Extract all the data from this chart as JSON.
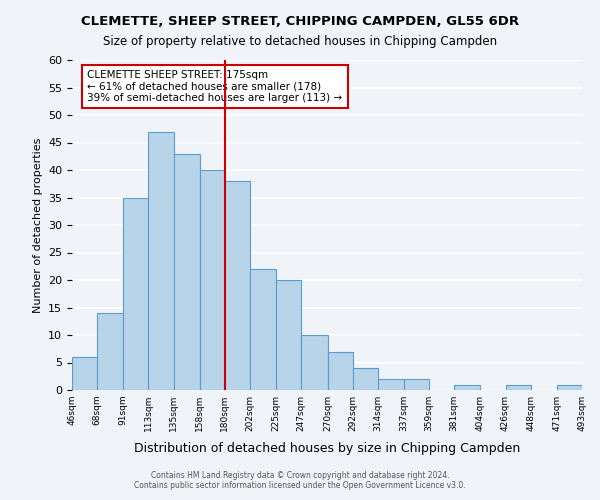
{
  "title": "CLEMETTE, SHEEP STREET, CHIPPING CAMPDEN, GL55 6DR",
  "subtitle": "Size of property relative to detached houses in Chipping Campden",
  "xlabel": "Distribution of detached houses by size in Chipping Campden",
  "ylabel": "Number of detached properties",
  "footer1": "Contains HM Land Registry data © Crown copyright and database right 2024.",
  "footer2": "Contains public sector information licensed under the Open Government Licence v3.0.",
  "bins": [
    46,
    68,
    91,
    113,
    135,
    158,
    180,
    202,
    225,
    247,
    270,
    292,
    314,
    337,
    359,
    381,
    404,
    426,
    448,
    471,
    493
  ],
  "counts": [
    6,
    14,
    35,
    47,
    43,
    40,
    38,
    22,
    20,
    10,
    7,
    4,
    2,
    2,
    0,
    1,
    0,
    1,
    0,
    1
  ],
  "bar_color": "#b8d4e8",
  "bar_edge_color": "#5b9bd5",
  "vline_color": "#cc0000",
  "annotation_text": "CLEMETTE SHEEP STREET: 175sqm\n← 61% of detached houses are smaller (178)\n39% of semi-detached houses are larger (113) →",
  "annotation_box_color": "#ffffff",
  "annotation_box_edge": "#cc0000",
  "ylim": [
    0,
    60
  ],
  "yticks": [
    0,
    5,
    10,
    15,
    20,
    25,
    30,
    35,
    40,
    45,
    50,
    55,
    60
  ],
  "background_color": "#f0f4f8",
  "grid_color": "#ffffff"
}
